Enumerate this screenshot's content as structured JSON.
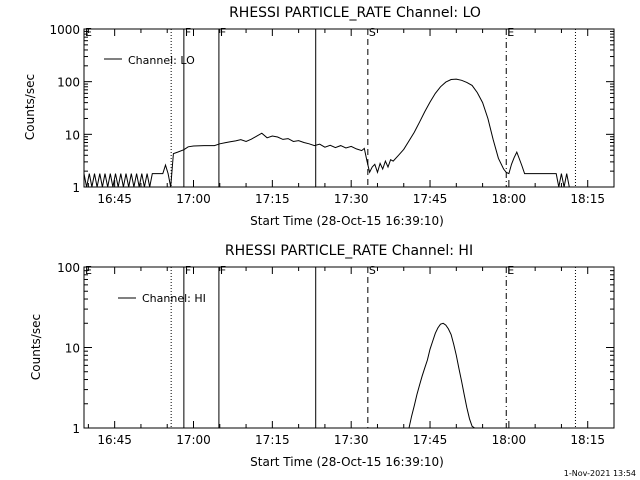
{
  "footer": {
    "timestamp": "1-Nov-2021 13:54"
  },
  "chart_data": [
    {
      "type": "line",
      "title": "RHESSI PARTICLE_RATE Channel: LO",
      "xlabel": "Start Time (28-Oct-15 16:39:10)",
      "ylabel": "Counts/sec",
      "log_y": true,
      "ylim": [
        1,
        1000
      ],
      "yticks": [
        1,
        10,
        100,
        1000
      ],
      "ytick_labels": [
        "1",
        "10",
        "100",
        "1000"
      ],
      "xlim": [
        "16:39:10",
        "18:20:00"
      ],
      "xticks": [
        "16:45",
        "17:00",
        "17:15",
        "17:30",
        "17:45",
        "18:00",
        "18:15"
      ],
      "legend": {
        "label": "Channel: LO",
        "position": "top-left"
      },
      "markers": [
        {
          "label": "E",
          "time": "16:39:10",
          "style": "solid"
        },
        {
          "label": "",
          "time": "16:55:45",
          "style": "dotted"
        },
        {
          "label": "F",
          "time": "16:58:10",
          "style": "solid"
        },
        {
          "label": "F",
          "time": "17:04:50",
          "style": "solid"
        },
        {
          "label": "",
          "time": "17:23:15",
          "style": "solid"
        },
        {
          "label": "S",
          "time": "17:33:10",
          "style": "dashed"
        },
        {
          "label": "E",
          "time": "17:59:30",
          "style": "dashdot"
        },
        {
          "label": "",
          "time": "18:12:40",
          "style": "dotted"
        }
      ],
      "series": [
        {
          "name": "",
          "x": [
            "16:39:10",
            "16:39:40",
            "16:40:10",
            "16:40:40",
            "16:41:10",
            "16:41:40",
            "16:42:10",
            "16:42:40",
            "16:43:10",
            "16:43:40",
            "16:44:10",
            "16:44:40",
            "16:45:10",
            "16:45:40",
            "16:46:10",
            "16:46:40",
            "16:47:10",
            "16:47:40",
            "16:48:10",
            "16:48:40",
            "16:49:10",
            "16:49:40",
            "16:50:10",
            "16:50:40",
            "16:51:10",
            "16:51:40",
            "16:52:10",
            "16:53:40",
            "16:54:10",
            "16:54:40",
            "16:55:10",
            "16:55:40",
            "16:56:10",
            "16:57:00",
            "16:58:10",
            "16:59:00",
            "17:00:00",
            "17:02:00",
            "17:04:00",
            "17:05:00",
            "17:06:00",
            "17:07:00",
            "17:08:00",
            "17:09:00",
            "17:10:00",
            "17:11:00",
            "17:12:00",
            "17:13:00",
            "17:14:00",
            "17:15:00",
            "17:16:00",
            "17:17:00",
            "17:18:00",
            "17:19:00",
            "17:20:00",
            "17:21:00",
            "17:22:00",
            "17:23:00",
            "17:24:00",
            "17:25:00",
            "17:26:00",
            "17:27:00",
            "17:28:00",
            "17:29:00",
            "17:30:00",
            "17:31:00",
            "17:32:00",
            "17:32:30",
            "17:33:00",
            "17:33:30",
            "17:34:00",
            "17:34:30",
            "17:35:00",
            "17:35:30",
            "17:36:00",
            "17:36:30",
            "17:37:00",
            "17:37:30",
            "17:38:00",
            "17:39:00",
            "17:40:00",
            "17:41:00",
            "17:42:00",
            "17:43:00",
            "17:44:00",
            "17:45:00",
            "17:46:00",
            "17:47:00",
            "17:48:00",
            "17:49:00",
            "17:50:00",
            "17:51:00",
            "17:52:00",
            "17:53:00",
            "17:54:00",
            "17:55:00",
            "17:56:00",
            "17:57:00",
            "17:58:00",
            "17:59:00",
            "17:59:30",
            "18:00:00",
            "18:00:30",
            "18:01:00",
            "18:01:30",
            "18:02:00",
            "18:02:30",
            "18:03:00",
            "18:04:00",
            "18:05:00",
            "18:06:00",
            "18:07:00",
            "18:08:00",
            "18:09:00",
            "18:09:30",
            "18:10:00",
            "18:10:30",
            "18:11:00",
            "18:11:30"
          ],
          "y": [
            1.8,
            1,
            1.8,
            1,
            1.8,
            1,
            1.8,
            1,
            1.8,
            1,
            1.8,
            1,
            1.8,
            1,
            1.8,
            1,
            1.8,
            1,
            1.8,
            1,
            1.8,
            1,
            1.8,
            1,
            1.8,
            1,
            1.8,
            1.8,
            1.8,
            2.6,
            1.8,
            1,
            4.3,
            4.6,
            5.1,
            5.8,
            6.0,
            6.1,
            6.1,
            6.6,
            6.9,
            7.2,
            7.5,
            7.9,
            7.3,
            8.1,
            9.2,
            10.5,
            8.6,
            9.3,
            8.9,
            8.0,
            8.3,
            7.3,
            7.6,
            7.0,
            6.6,
            6.1,
            6.5,
            5.7,
            6.2,
            5.6,
            6.1,
            5.5,
            5.9,
            5.3,
            4.9,
            5.4,
            3.1,
            1.9,
            2.4,
            2.7,
            1.9,
            2.8,
            2.2,
            3.1,
            2.4,
            3.3,
            3.1,
            4.0,
            5.2,
            7.5,
            11.0,
            17,
            27,
            41,
            60,
            80,
            98,
            110,
            112,
            106,
            97,
            85,
            62,
            40,
            20,
            8.0,
            3.5,
            2.2,
            1.9,
            1.8,
            2.7,
            3.6,
            4.6,
            3.4,
            2.5,
            1.8,
            1.8,
            1.8,
            1.8,
            1.8,
            1.8,
            1.8,
            1,
            1.8,
            1,
            1.8,
            1
          ]
        }
      ]
    },
    {
      "type": "line",
      "title": "RHESSI PARTICLE_RATE Channel: HI",
      "xlabel": "Start Time (28-Oct-15 16:39:10)",
      "ylabel": "Counts/sec",
      "log_y": true,
      "ylim": [
        1,
        100
      ],
      "yticks": [
        1,
        10,
        100
      ],
      "ytick_labels": [
        "1",
        "10",
        "100"
      ],
      "xlim": [
        "16:39:10",
        "18:20:00"
      ],
      "xticks": [
        "16:45",
        "17:00",
        "17:15",
        "17:30",
        "17:45",
        "18:00",
        "18:15"
      ],
      "legend": {
        "label": "Channel: HI",
        "position": "top-left"
      },
      "markers": [
        {
          "label": "E",
          "time": "16:39:10",
          "style": "solid"
        },
        {
          "label": "",
          "time": "16:55:45",
          "style": "dotted"
        },
        {
          "label": "F",
          "time": "16:58:10",
          "style": "solid"
        },
        {
          "label": "F",
          "time": "17:04:50",
          "style": "solid"
        },
        {
          "label": "",
          "time": "17:23:15",
          "style": "solid"
        },
        {
          "label": "S",
          "time": "17:33:10",
          "style": "dashed"
        },
        {
          "label": "E",
          "time": "17:59:30",
          "style": "dashdot"
        },
        {
          "label": "",
          "time": "18:12:40",
          "style": "dotted"
        }
      ],
      "series": [
        {
          "name": "",
          "x": [
            "17:41:00",
            "17:41:30",
            "17:42:00",
            "17:42:30",
            "17:43:00",
            "17:43:30",
            "17:44:00",
            "17:44:30",
            "17:45:00",
            "17:45:30",
            "17:46:00",
            "17:46:30",
            "17:47:00",
            "17:47:30",
            "17:48:00",
            "17:48:30",
            "17:49:00",
            "17:49:30",
            "17:50:00",
            "17:50:30",
            "17:51:00",
            "17:51:30",
            "17:52:00",
            "17:52:30",
            "17:53:00",
            "17:53:30"
          ],
          "y": [
            1.0,
            1.4,
            1.9,
            2.6,
            3.4,
            4.4,
            5.6,
            7.0,
            9.5,
            12.0,
            15.0,
            17.5,
            19.5,
            20.0,
            19.0,
            17.0,
            14.5,
            11.0,
            8.0,
            5.5,
            3.8,
            2.6,
            1.8,
            1.3,
            1.05,
            1.0
          ]
        }
      ]
    }
  ]
}
